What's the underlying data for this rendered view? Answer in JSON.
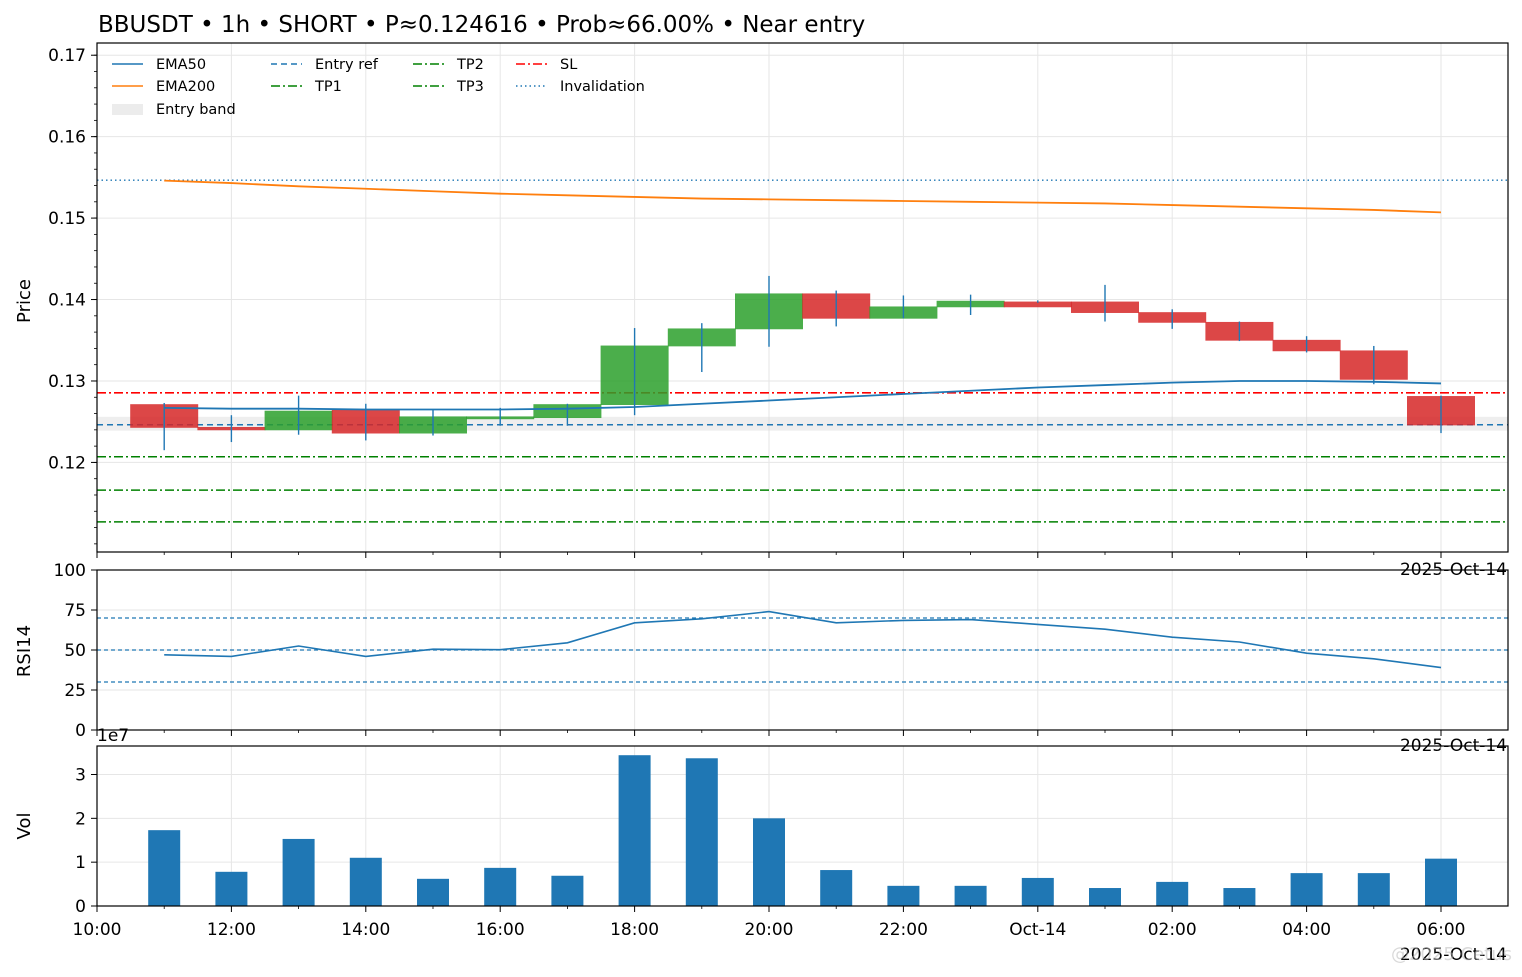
{
  "chart_data": [
    {
      "type": "candlestick",
      "title": "BBUSDT • 1h • SHORT • P≈0.124616 • Prob≈66.00% • Near entry",
      "ylabel": "Price",
      "ylim": [
        0.109,
        0.1715
      ],
      "yticks": [
        0.12,
        0.13,
        0.14,
        0.15,
        0.16,
        0.17
      ],
      "ytick_labels": [
        "0.12",
        "0.13",
        "0.14",
        "0.15",
        "0.16",
        "0.17"
      ],
      "x_hours": [
        11,
        12,
        13,
        14,
        15,
        16,
        17,
        18,
        19,
        20,
        21,
        22,
        23,
        24,
        25,
        26,
        27,
        28,
        29,
        30
      ],
      "open": [
        0.1271,
        0.1243,
        0.124,
        0.1264,
        0.1236,
        0.1254,
        0.1255,
        0.1271,
        0.1343,
        0.1364,
        0.1407,
        0.1377,
        0.1391,
        0.1397,
        0.1397,
        0.1384,
        0.1372,
        0.135,
        0.1337,
        0.1302
      ],
      "high": [
        0.1273,
        0.1258,
        0.1282,
        0.1272,
        0.1265,
        0.1267,
        0.1272,
        0.1365,
        0.1371,
        0.1429,
        0.1411,
        0.1405,
        0.1406,
        0.1399,
        0.1418,
        0.1388,
        0.1373,
        0.1355,
        0.1343,
        0.1319
      ],
      "low": [
        0.1215,
        0.1225,
        0.1234,
        0.1227,
        0.1233,
        0.1245,
        0.1245,
        0.1258,
        0.1311,
        0.1342,
        0.1367,
        0.1377,
        0.1381,
        0.1396,
        0.1373,
        0.1364,
        0.1349,
        0.1335,
        0.1296,
        0.1276
      ],
      "close": [
        0.1243,
        0.124,
        0.1263,
        0.1236,
        0.1256,
        0.1256,
        0.1271,
        0.1343,
        0.1364,
        0.1407,
        0.1377,
        0.1391,
        0.1398,
        0.1391,
        0.1384,
        0.1372,
        0.135,
        0.1337,
        0.1302,
        0.1281
      ],
      "ema50": [
        0.1267,
        0.1266,
        0.1266,
        0.1265,
        0.1265,
        0.1265,
        0.1266,
        0.1268,
        0.1272,
        0.1276,
        0.128,
        0.1284,
        0.1288,
        0.1292,
        0.1295,
        0.1298,
        0.13,
        0.13,
        0.1299,
        0.1297
      ],
      "ema200": [
        0.1546,
        0.1543,
        0.1539,
        0.1536,
        0.1533,
        0.153,
        0.1528,
        0.1526,
        0.1524,
        0.1523,
        0.1522,
        0.1521,
        0.152,
        0.1519,
        0.1518,
        0.1516,
        0.1514,
        0.1512,
        0.151,
        0.1507
      ],
      "last_candle": {
        "open": 0.1281,
        "high": 0.1282,
        "low": 0.1236,
        "close": 0.1246
      },
      "levels": {
        "entry_ref": 0.12462,
        "entry_band": [
          0.1239,
          0.1256
        ],
        "sl": 0.12855,
        "tp1": 0.1207,
        "tp2": 0.1166,
        "tp3": 0.1127,
        "invalidation": 0.15465
      },
      "legend": {
        "placement": "upper-left",
        "entries": [
          "EMA50",
          "EMA200",
          "Entry band",
          "Entry ref",
          "TP1",
          "TP2",
          "TP3",
          "SL",
          "Invalidation"
        ]
      },
      "colors": {
        "up": "#2ca02c",
        "down": "#d62728",
        "ema50": "#1f77b4",
        "ema200": "#ff7f0e",
        "sl": "#ff0000",
        "tp": "#008000",
        "entry": "#1f77b4",
        "band": "#d9d9d9"
      },
      "offset_text": "2025-Oct-14"
    },
    {
      "type": "line",
      "ylabel": "RSI14",
      "ylim": [
        0,
        100
      ],
      "yticks": [
        0,
        25,
        50,
        75,
        100
      ],
      "ytick_labels": [
        "0",
        "25",
        "50",
        "75",
        "100"
      ],
      "x_hours": [
        11,
        12,
        13,
        14,
        15,
        16,
        17,
        18,
        19,
        20,
        21,
        22,
        23,
        24,
        25,
        26,
        27,
        28,
        29,
        30
      ],
      "values": [
        47,
        46,
        52.5,
        46,
        50.5,
        50.2,
        54.5,
        67,
        69.5,
        74,
        67,
        68.5,
        69,
        66,
        63,
        58,
        55,
        48,
        44.5,
        39
      ],
      "reference_lines": [
        70,
        50,
        30
      ],
      "offset_text": "2025-Oct-14"
    },
    {
      "type": "bar",
      "ylabel": "Vol",
      "scale_label": "1e7",
      "ylim": [
        0,
        3.65
      ],
      "yticks": [
        0,
        1,
        2,
        3
      ],
      "ytick_labels": [
        "0",
        "1",
        "2",
        "3"
      ],
      "x_hours": [
        11,
        12,
        13,
        14,
        15,
        16,
        17,
        18,
        19,
        20,
        21,
        22,
        23,
        24,
        25,
        26,
        27,
        28,
        29,
        30
      ],
      "values": [
        1.73,
        0.78,
        1.53,
        1.1,
        0.62,
        0.87,
        0.69,
        3.44,
        3.37,
        2.0,
        0.82,
        0.46,
        0.46,
        0.64,
        0.41,
        0.55,
        0.41,
        0.75,
        0.75,
        1.08
      ],
      "color": "#1f77b4",
      "xticks_hours": [
        10,
        12,
        14,
        16,
        18,
        20,
        22,
        24,
        26,
        28,
        30
      ],
      "xtick_labels": [
        "10:00",
        "12:00",
        "14:00",
        "16:00",
        "18:00",
        "20:00",
        "22:00",
        "Oct-14",
        "02:00",
        "04:00",
        "06:00"
      ],
      "offset_text": "2025-Oct-14"
    }
  ],
  "watermark": "@2025 Cetus"
}
